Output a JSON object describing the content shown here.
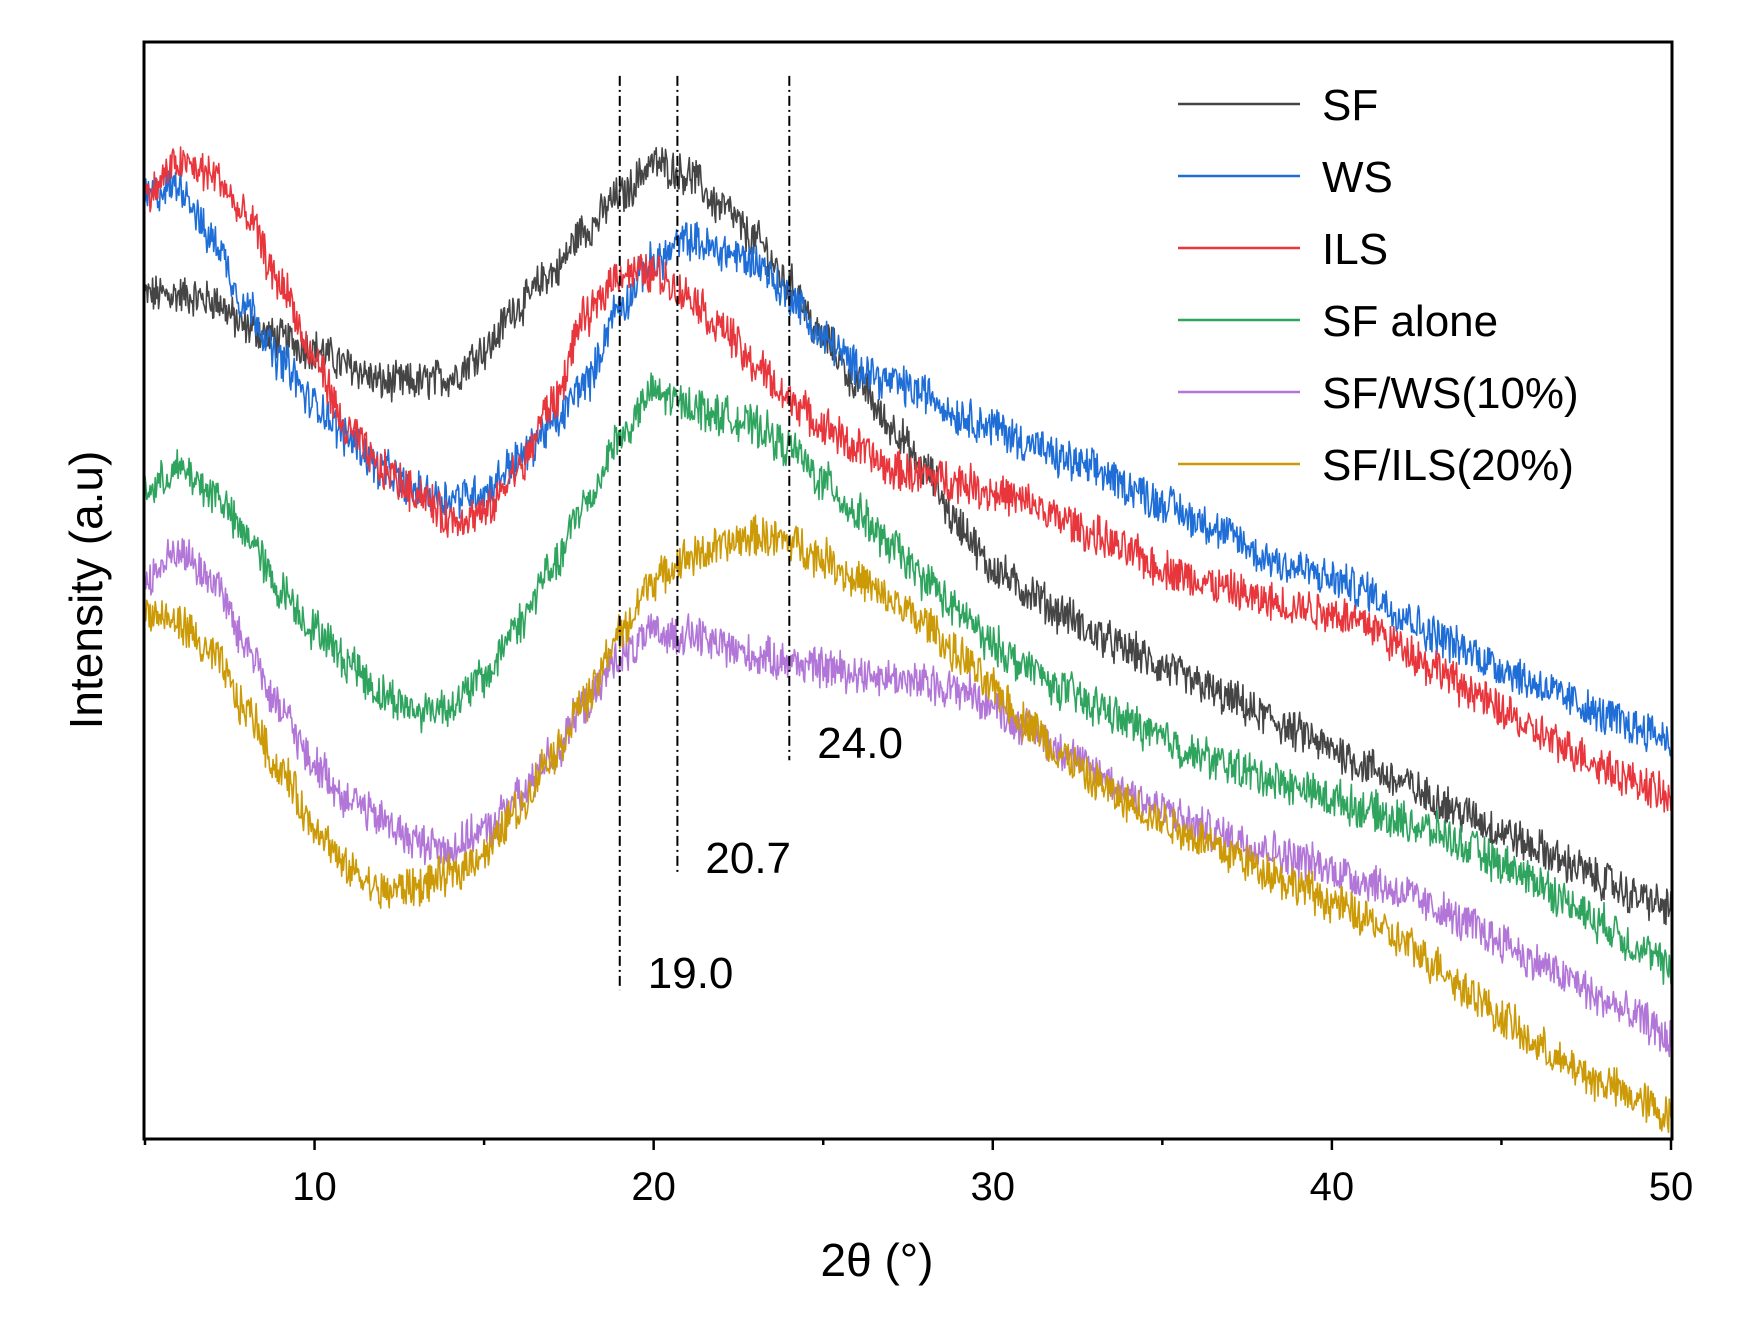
{
  "chart_data": {
    "type": "line",
    "title": "",
    "xlabel": "2θ (°)",
    "ylabel": "Intensity (a.u)",
    "xlim": [
      5,
      50
    ],
    "ylim": [
      0,
      100
    ],
    "x_ticks": [
      10,
      20,
      30,
      40,
      50
    ],
    "x_tick_labels": [
      "10",
      "20",
      "30",
      "40",
      "50"
    ],
    "y_ticks_shown": false,
    "legend_position": "top-right",
    "series": [
      {
        "name": "SF",
        "color": "#454545",
        "knots": [
          [
            5,
            77
          ],
          [
            6,
            77
          ],
          [
            7,
            76.5
          ],
          [
            8,
            74
          ],
          [
            9,
            73
          ],
          [
            10,
            72
          ],
          [
            11,
            70.5
          ],
          [
            12,
            69
          ],
          [
            13,
            69
          ],
          [
            14,
            69.5
          ],
          [
            15,
            72
          ],
          [
            16,
            76
          ],
          [
            17,
            79
          ],
          [
            18,
            83
          ],
          [
            19,
            86
          ],
          [
            20,
            89
          ],
          [
            21,
            88
          ],
          [
            22,
            85
          ],
          [
            23,
            82
          ],
          [
            24,
            78
          ],
          [
            25,
            73
          ],
          [
            26,
            69
          ],
          [
            27,
            65
          ],
          [
            28,
            61
          ],
          [
            29,
            56
          ],
          [
            30,
            52
          ],
          [
            31,
            50
          ],
          [
            32,
            48
          ],
          [
            33,
            46
          ],
          [
            34,
            44.5
          ],
          [
            35,
            43
          ],
          [
            36,
            41.5
          ],
          [
            37,
            40
          ],
          [
            38,
            38.5
          ],
          [
            39,
            37
          ],
          [
            40,
            35.5
          ],
          [
            41,
            34
          ],
          [
            42,
            32.5
          ],
          [
            43,
            31
          ],
          [
            44,
            29.5
          ],
          [
            45,
            28
          ],
          [
            46,
            26.5
          ],
          [
            47,
            25
          ],
          [
            48,
            23.5
          ],
          [
            49,
            22
          ],
          [
            50,
            21
          ]
        ]
      },
      {
        "name": "WS",
        "color": "#1f6ed8",
        "knots": [
          [
            5,
            86
          ],
          [
            6,
            87
          ],
          [
            7,
            82
          ],
          [
            8,
            76
          ],
          [
            9,
            71
          ],
          [
            10,
            67
          ],
          [
            11,
            64
          ],
          [
            12,
            61
          ],
          [
            13,
            59
          ],
          [
            14,
            58.5
          ],
          [
            15,
            59
          ],
          [
            16,
            62
          ],
          [
            17,
            65
          ],
          [
            18,
            69
          ],
          [
            19,
            76
          ],
          [
            20,
            80
          ],
          [
            21,
            82
          ],
          [
            22,
            81
          ],
          [
            23,
            80
          ],
          [
            24,
            77
          ],
          [
            25,
            73
          ],
          [
            26,
            70.5
          ],
          [
            27,
            69
          ],
          [
            28,
            68
          ],
          [
            29,
            66
          ],
          [
            30,
            65
          ],
          [
            31,
            63.5
          ],
          [
            32,
            62
          ],
          [
            33,
            61
          ],
          [
            34,
            59.5
          ],
          [
            35,
            58
          ],
          [
            36,
            56.5
          ],
          [
            37,
            55
          ],
          [
            38,
            53
          ],
          [
            39,
            52
          ],
          [
            40,
            51
          ],
          [
            41,
            50
          ],
          [
            42,
            48
          ],
          [
            43,
            46
          ],
          [
            44,
            44.5
          ],
          [
            45,
            43
          ],
          [
            46,
            41.5
          ],
          [
            47,
            40
          ],
          [
            48,
            38.5
          ],
          [
            49,
            37.5
          ],
          [
            50,
            36.5
          ]
        ]
      },
      {
        "name": "ILS",
        "color": "#e8363c",
        "knots": [
          [
            5,
            86
          ],
          [
            6,
            89
          ],
          [
            7,
            88
          ],
          [
            8,
            84
          ],
          [
            9,
            78
          ],
          [
            10,
            71
          ],
          [
            11,
            64.5
          ],
          [
            12,
            61
          ],
          [
            13,
            59
          ],
          [
            14,
            56.5
          ],
          [
            15,
            57
          ],
          [
            16,
            61
          ],
          [
            17,
            67
          ],
          [
            18,
            75
          ],
          [
            19,
            79
          ],
          [
            20,
            79
          ],
          [
            21,
            77
          ],
          [
            22,
            74
          ],
          [
            23,
            70.5
          ],
          [
            24,
            67.5
          ],
          [
            25,
            65
          ],
          [
            26,
            63
          ],
          [
            27,
            61
          ],
          [
            28,
            60.5
          ],
          [
            29,
            60
          ],
          [
            30,
            59
          ],
          [
            31,
            58
          ],
          [
            32,
            56.5
          ],
          [
            33,
            55
          ],
          [
            34,
            53.5
          ],
          [
            35,
            52
          ],
          [
            36,
            51
          ],
          [
            37,
            50
          ],
          [
            38,
            49
          ],
          [
            39,
            48.5
          ],
          [
            40,
            48
          ],
          [
            41,
            47
          ],
          [
            42,
            45
          ],
          [
            43,
            43
          ],
          [
            44,
            41
          ],
          [
            45,
            39
          ],
          [
            46,
            37
          ],
          [
            47,
            35.5
          ],
          [
            48,
            34
          ],
          [
            49,
            32.5
          ],
          [
            50,
            31
          ]
        ]
      },
      {
        "name": "SF alone",
        "color": "#2fa45e",
        "knots": [
          [
            5,
            59
          ],
          [
            6,
            61
          ],
          [
            7,
            59
          ],
          [
            8,
            55
          ],
          [
            9,
            50
          ],
          [
            10,
            46.5
          ],
          [
            11,
            43.5
          ],
          [
            12,
            40.5
          ],
          [
            13,
            39
          ],
          [
            14,
            39.5
          ],
          [
            15,
            42
          ],
          [
            16,
            47
          ],
          [
            17,
            52
          ],
          [
            18,
            58
          ],
          [
            19,
            64
          ],
          [
            20,
            68
          ],
          [
            21,
            67
          ],
          [
            22,
            66
          ],
          [
            23,
            65
          ],
          [
            24,
            63
          ],
          [
            25,
            60
          ],
          [
            26,
            57
          ],
          [
            27,
            54
          ],
          [
            28,
            51
          ],
          [
            29,
            48
          ],
          [
            30,
            45
          ],
          [
            31,
            43
          ],
          [
            32,
            41
          ],
          [
            33,
            39.5
          ],
          [
            34,
            38
          ],
          [
            35,
            36.5
          ],
          [
            36,
            35
          ],
          [
            37,
            34
          ],
          [
            38,
            33
          ],
          [
            39,
            32
          ],
          [
            40,
            31
          ],
          [
            41,
            30
          ],
          [
            42,
            29
          ],
          [
            43,
            28
          ],
          [
            44,
            26.5
          ],
          [
            45,
            25
          ],
          [
            46,
            23.5
          ],
          [
            47,
            21.5
          ],
          [
            48,
            19.5
          ],
          [
            49,
            17.5
          ],
          [
            50,
            15.5
          ]
        ]
      },
      {
        "name": "SF/WS(10%)",
        "color": "#b276d8",
        "knots": [
          [
            5,
            51
          ],
          [
            6,
            53.5
          ],
          [
            7,
            51
          ],
          [
            8,
            45
          ],
          [
            9,
            39
          ],
          [
            10,
            34
          ],
          [
            11,
            31
          ],
          [
            12,
            29
          ],
          [
            13,
            27
          ],
          [
            14,
            26.5
          ],
          [
            15,
            28
          ],
          [
            16,
            31
          ],
          [
            17,
            35
          ],
          [
            18,
            39.5
          ],
          [
            19,
            44
          ],
          [
            20,
            46
          ],
          [
            21,
            46
          ],
          [
            22,
            45
          ],
          [
            23,
            44
          ],
          [
            24,
            43.5
          ],
          [
            25,
            43
          ],
          [
            26,
            42.5
          ],
          [
            27,
            42
          ],
          [
            28,
            41.5
          ],
          [
            29,
            41
          ],
          [
            30,
            39.5
          ],
          [
            31,
            37.5
          ],
          [
            32,
            35.5
          ],
          [
            33,
            33.5
          ],
          [
            34,
            31.5
          ],
          [
            35,
            30
          ],
          [
            36,
            28.5
          ],
          [
            37,
            27.5
          ],
          [
            38,
            26.5
          ],
          [
            39,
            25.5
          ],
          [
            40,
            24.5
          ],
          [
            41,
            23.5
          ],
          [
            42,
            22.5
          ],
          [
            43,
            21
          ],
          [
            44,
            19.5
          ],
          [
            45,
            18
          ],
          [
            46,
            16
          ],
          [
            47,
            14.5
          ],
          [
            48,
            12.5
          ],
          [
            49,
            11
          ],
          [
            50,
            9
          ]
        ]
      },
      {
        "name": "SF/ILS(20%)",
        "color": "#cc9a06",
        "knots": [
          [
            5,
            48
          ],
          [
            6,
            47
          ],
          [
            7,
            44
          ],
          [
            8,
            39
          ],
          [
            9,
            33.5
          ],
          [
            10,
            28.5
          ],
          [
            11,
            24.5
          ],
          [
            12,
            22.5
          ],
          [
            13,
            23
          ],
          [
            14,
            24
          ],
          [
            15,
            26
          ],
          [
            16,
            30
          ],
          [
            17,
            35
          ],
          [
            18,
            40
          ],
          [
            19,
            46
          ],
          [
            20,
            51
          ],
          [
            21,
            53
          ],
          [
            22,
            54
          ],
          [
            23,
            55
          ],
          [
            24,
            54.5
          ],
          [
            25,
            53
          ],
          [
            26,
            51
          ],
          [
            27,
            49
          ],
          [
            28,
            47
          ],
          [
            29,
            44
          ],
          [
            30,
            41
          ],
          [
            31,
            38
          ],
          [
            32,
            35
          ],
          [
            33,
            32.5
          ],
          [
            34,
            30.5
          ],
          [
            35,
            29
          ],
          [
            36,
            27.5
          ],
          [
            37,
            26
          ],
          [
            38,
            24.5
          ],
          [
            39,
            23
          ],
          [
            40,
            21.5
          ],
          [
            41,
            20
          ],
          [
            42,
            18
          ],
          [
            43,
            16
          ],
          [
            44,
            13.5
          ],
          [
            45,
            11
          ],
          [
            46,
            8.5
          ],
          [
            47,
            6.5
          ],
          [
            48,
            5
          ],
          [
            49,
            3.5
          ],
          [
            50,
            2
          ]
        ]
      }
    ],
    "reference_lines": [
      {
        "x": 19.0,
        "label": "19.0",
        "y_top": 97,
        "y_bottom": 13.5
      },
      {
        "x": 20.7,
        "label": "20.7",
        "y_top": 97,
        "y_bottom": 24
      },
      {
        "x": 24.0,
        "label": "24.0",
        "y_top": 97,
        "y_bottom": 34.5
      }
    ],
    "noise_amplitude": 1.6
  }
}
